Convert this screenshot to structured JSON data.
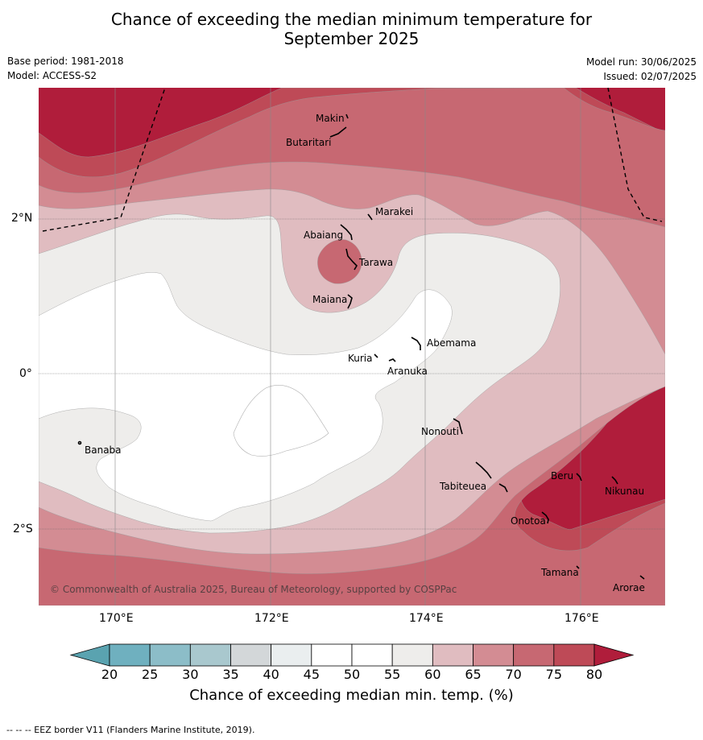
{
  "title_line1": "Chance of exceeding the median minimum temperature for",
  "title_line2": "September 2025",
  "base_period": "Base period: 1981-2018",
  "model": "Model: ACCESS-S2",
  "model_run": "Model run: 30/06/2025",
  "issued": "Issued: 02/07/2025",
  "lat_labels": [
    "2°N",
    "0°",
    "2°S"
  ],
  "lon_labels": [
    "170°E",
    "172°E",
    "174°E",
    "176°E"
  ],
  "places": [
    "Makin",
    "Butaritari",
    "Marakei",
    "Abaiang",
    "Tarawa",
    "Maiana",
    "Abemama",
    "Kuria",
    "Aranuka",
    "Banaba",
    "Nonouti",
    "Tabiteuea",
    "Beru",
    "Nikunau",
    "Onotoa",
    "Tamana",
    "Arorae"
  ],
  "copyright": "© Commonwealth of Australia 2025, Bureau of Meteorology, supported by COSPPac",
  "colorbar": {
    "ticks": [
      "20",
      "25",
      "30",
      "35",
      "40",
      "45",
      "50",
      "55",
      "60",
      "65",
      "70",
      "75",
      "80"
    ],
    "colors": [
      "#5aa3b0",
      "#6fb0bf",
      "#8cbdc8",
      "#a9c8ce",
      "#d3d7d9",
      "#eaeeef",
      "#ffffff",
      "#ffffff",
      "#eeedeb",
      "#e0bcc0",
      "#d38c93",
      "#c76872",
      "#be4a57",
      "#b01d3b"
    ],
    "label": "Chance of exceeding median min. temp. (%)"
  },
  "footer": "--  --  -- EEZ border V11 (Flanders Marine Institute, 2019)."
}
